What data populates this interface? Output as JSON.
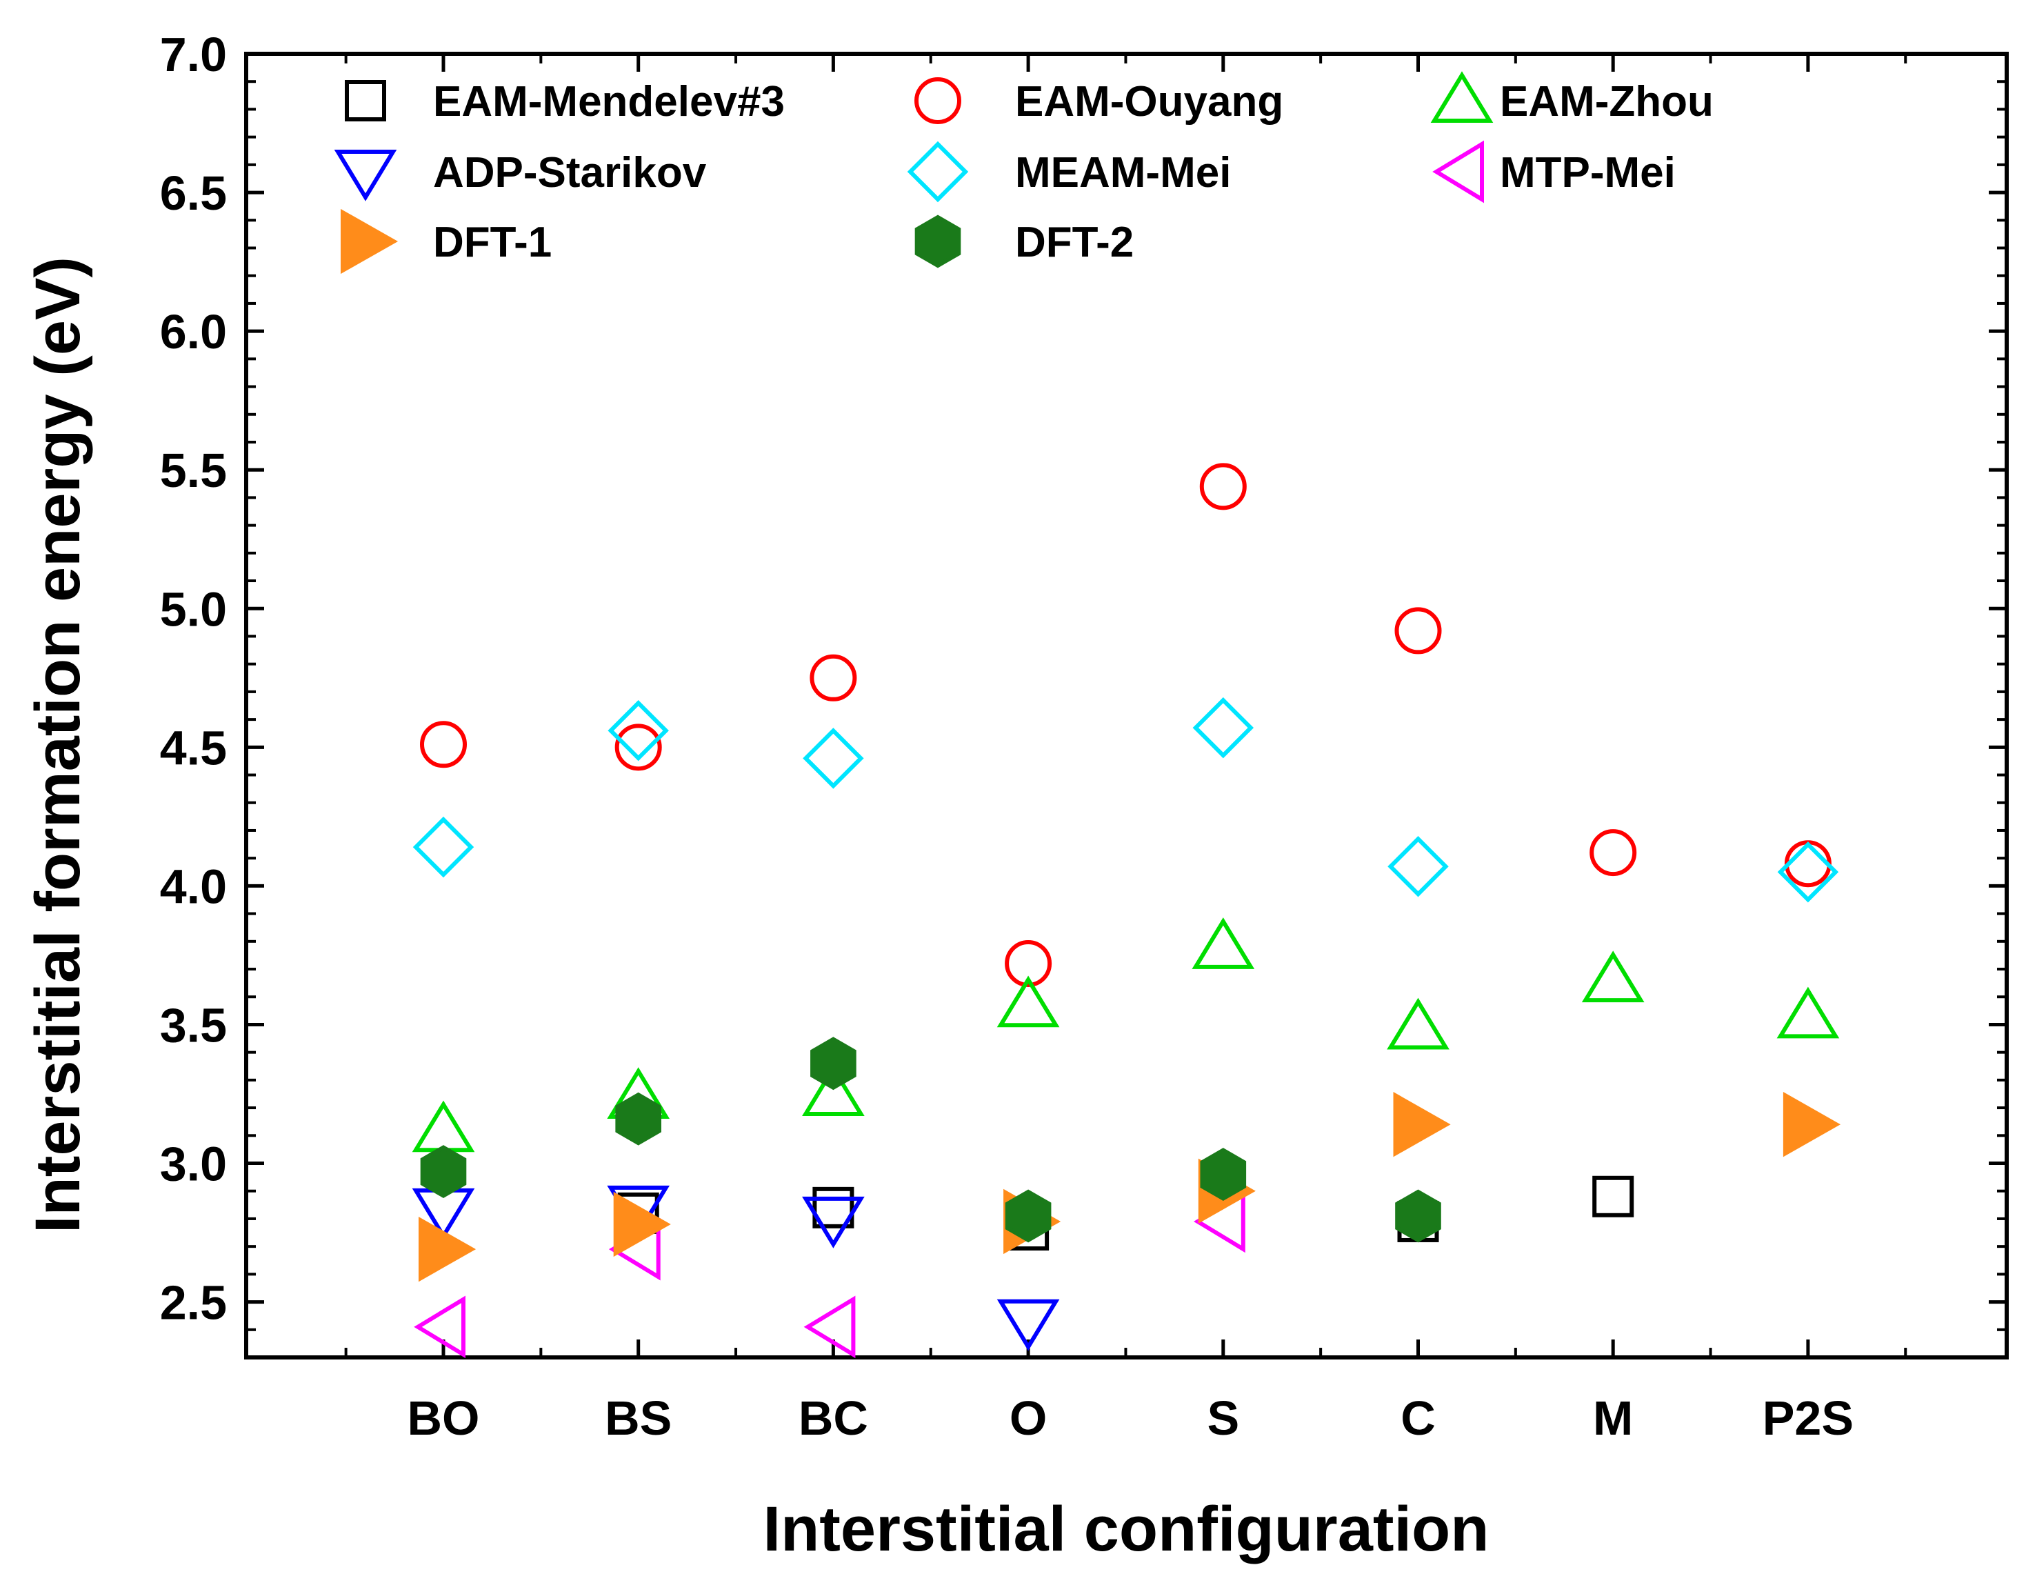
{
  "chart_data": {
    "type": "scatter",
    "xlabel": "Interstitial configuration",
    "ylabel": "Interstitial formation energy (eV)",
    "categories": [
      "BO",
      "BS",
      "BC",
      "O",
      "S",
      "C",
      "M",
      "P2S"
    ],
    "ylim": [
      2.3,
      7.0
    ],
    "yticks": [
      "2.5",
      "3.0",
      "3.5",
      "4.0",
      "4.5",
      "5.0",
      "5.5",
      "6.0",
      "6.5",
      "7.0"
    ],
    "legend_position": "top",
    "series": [
      {
        "name": "EAM-Mendelev#3",
        "marker": "square",
        "color": "#000000",
        "filled": false,
        "values": [
          null,
          2.82,
          2.84,
          2.76,
          null,
          2.79,
          2.88,
          null
        ]
      },
      {
        "name": "EAM-Ouyang",
        "marker": "circle",
        "color": "#ff0000",
        "filled": false,
        "values": [
          4.51,
          4.5,
          4.75,
          3.72,
          5.44,
          4.92,
          4.12,
          4.08
        ]
      },
      {
        "name": "EAM-Zhou",
        "marker": "triangle-up",
        "color": "#00dd00",
        "filled": false,
        "values": [
          3.12,
          3.24,
          3.25,
          3.57,
          3.78,
          3.49,
          3.66,
          3.53
        ]
      },
      {
        "name": "ADP-Starikov",
        "marker": "triangle-down",
        "color": "#0000ff",
        "filled": false,
        "values": [
          2.83,
          2.84,
          2.8,
          2.43,
          null,
          null,
          null,
          null
        ]
      },
      {
        "name": "MEAM-Mei",
        "marker": "diamond",
        "color": "#00e5ff",
        "filled": false,
        "values": [
          4.14,
          4.56,
          4.46,
          null,
          4.57,
          4.07,
          null,
          4.05
        ]
      },
      {
        "name": "MTP-Mei",
        "marker": "triangle-left",
        "color": "#ff00ff",
        "filled": false,
        "values": [
          2.41,
          2.69,
          2.41,
          null,
          2.79,
          null,
          null,
          null
        ]
      },
      {
        "name": "DFT-1",
        "marker": "triangle-right",
        "color": "#ff8c1a",
        "filled": true,
        "values": [
          2.69,
          2.78,
          null,
          2.79,
          2.9,
          3.14,
          null,
          3.14
        ]
      },
      {
        "name": "DFT-2",
        "marker": "hexagon",
        "color": "#1a7a1a",
        "filled": true,
        "values": [
          2.97,
          3.16,
          3.36,
          2.81,
          2.96,
          2.81,
          null,
          null
        ]
      }
    ]
  }
}
